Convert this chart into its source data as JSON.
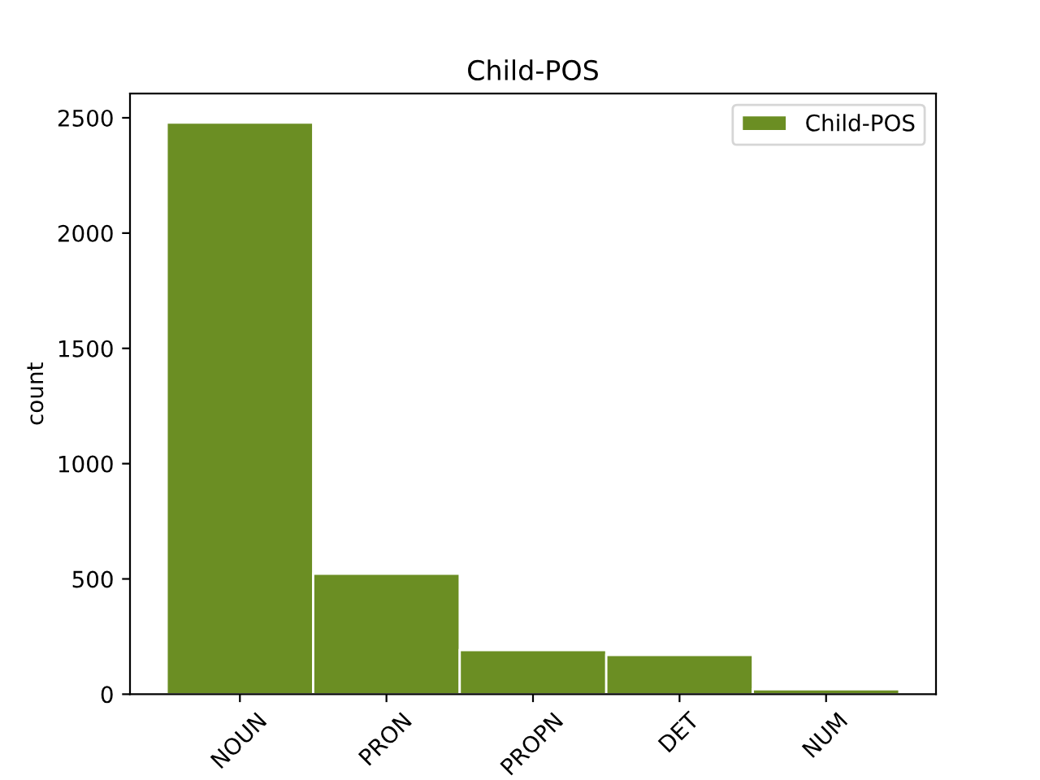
{
  "chart_data": {
    "type": "bar",
    "title": "Child-POS",
    "ylabel": "count",
    "categories": [
      "NOUN",
      "PRON",
      "PROPN",
      "DET",
      "NUM"
    ],
    "series": [
      {
        "name": "Child-POS",
        "color": "#6b8e23",
        "values": [
          2479,
          523,
          191,
          170,
          21
        ]
      }
    ],
    "ylim": [
      0,
      2605
    ],
    "yticks": [
      0,
      500,
      1000,
      1500,
      2000,
      2500
    ],
    "grid": false,
    "legend": "top right"
  }
}
